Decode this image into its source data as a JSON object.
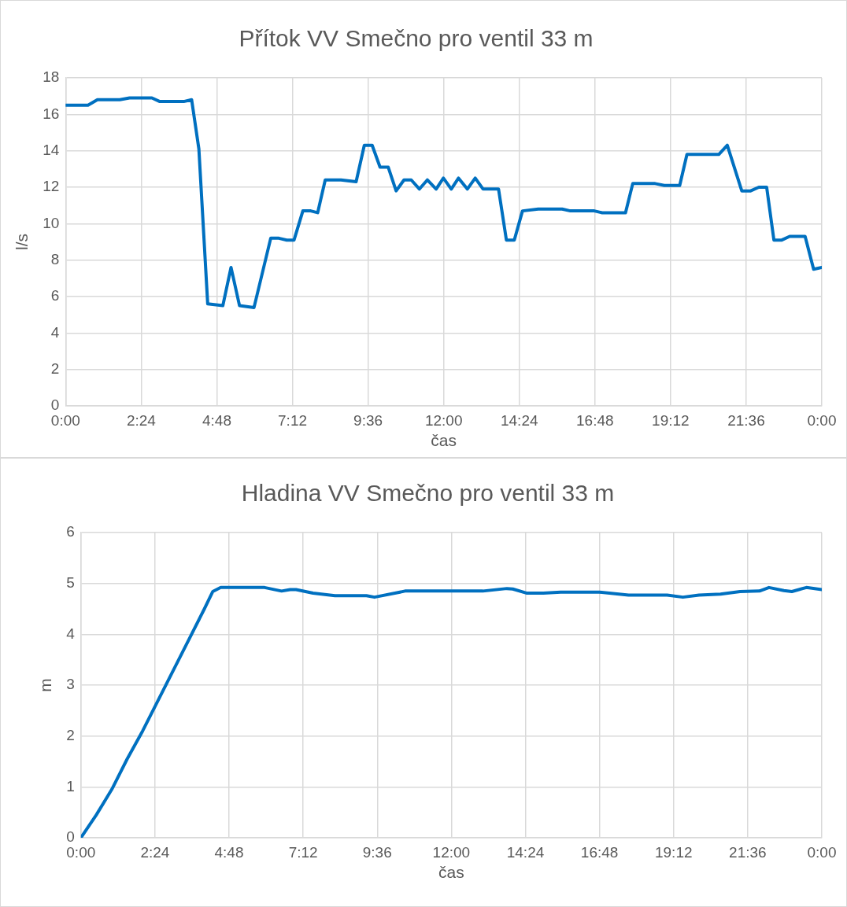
{
  "chart_data": [
    {
      "type": "line",
      "title": "Přítok VV Smečno pro ventil 33 m",
      "xlabel": "čas",
      "ylabel": "l/s",
      "grid": true,
      "marker": "none",
      "line_style": "solid",
      "x": [
        0,
        0.71,
        1.01,
        1.72,
        2.03,
        2.74,
        2.99,
        3.75,
        4.0,
        4.23,
        4.51,
        4.99,
        5.25,
        5.52,
        5.98,
        6.51,
        6.77,
        7.02,
        7.25,
        7.53,
        7.78,
        8.0,
        8.24,
        8.74,
        9.22,
        9.48,
        9.73,
        9.98,
        10.24,
        10.49,
        10.74,
        10.97,
        11.23,
        11.48,
        11.76,
        11.99,
        12.24,
        12.47,
        12.75,
        13.0,
        13.25,
        13.74,
        13.99,
        14.24,
        14.5,
        15.0,
        15.76,
        16.02,
        16.78,
        17.03,
        17.77,
        18.0,
        18.71,
        19.0,
        19.49,
        19.72,
        19.97,
        20.73,
        21.0,
        21.46,
        21.74,
        22.0,
        22.25,
        22.48,
        22.73,
        22.98,
        23.47,
        23.74,
        24.0
      ],
      "series": [
        {
          "color": "#0070c0",
          "values": [
            16.5,
            16.5,
            16.8,
            16.8,
            16.9,
            16.9,
            16.7,
            16.7,
            16.8,
            14.1,
            5.6,
            5.5,
            7.6,
            5.5,
            5.4,
            9.2,
            9.2,
            9.1,
            9.1,
            10.7,
            10.7,
            10.6,
            12.4,
            12.4,
            12.3,
            14.3,
            14.3,
            13.1,
            13.1,
            11.8,
            12.4,
            12.4,
            11.9,
            12.4,
            11.9,
            12.5,
            11.9,
            12.5,
            11.9,
            12.5,
            11.9,
            11.9,
            9.1,
            9.1,
            10.7,
            10.8,
            10.8,
            10.7,
            10.7,
            10.6,
            10.6,
            12.2,
            12.2,
            12.1,
            12.1,
            13.8,
            13.8,
            13.8,
            14.3,
            11.8,
            11.8,
            12.0,
            12.0,
            9.1,
            9.1,
            9.3,
            9.3,
            7.5,
            7.6
          ]
        }
      ],
      "xlim": [
        0,
        24
      ],
      "xticks": [
        {
          "value": 0,
          "label": "0:00"
        },
        {
          "value": 2.4,
          "label": "2:24"
        },
        {
          "value": 4.8,
          "label": "4:48"
        },
        {
          "value": 7.2,
          "label": "7:12"
        },
        {
          "value": 9.6,
          "label": "9:36"
        },
        {
          "value": 12,
          "label": "12:00"
        },
        {
          "value": 14.4,
          "label": "14:24"
        },
        {
          "value": 16.8,
          "label": "16:48"
        },
        {
          "value": 19.2,
          "label": "19:12"
        },
        {
          "value": 21.6,
          "label": "21:36"
        },
        {
          "value": 24,
          "label": "0:00"
        }
      ],
      "ylim": [
        0,
        18
      ],
      "yticks": [
        0,
        2,
        4,
        6,
        8,
        10,
        12,
        14,
        16,
        18
      ]
    },
    {
      "type": "line",
      "title": "Hladina VV Smečno pro ventil 33 m",
      "xlabel": "čas",
      "ylabel": "m",
      "grid": true,
      "marker": "none",
      "line_style": "solid",
      "x": [
        0,
        0.5,
        1,
        1.5,
        2,
        2.5,
        3,
        3.5,
        4,
        4.27,
        4.53,
        5.95,
        6.5,
        6.78,
        6.97,
        7.52,
        8.23,
        9.25,
        9.51,
        10.27,
        10.5,
        13.02,
        13.8,
        13.99,
        14.43,
        14.98,
        15.54,
        16.79,
        17.74,
        18.99,
        19.5,
        20.02,
        20.72,
        21.35,
        21.98,
        22.29,
        22.77,
        23.03,
        23.5,
        24
      ],
      "series": [
        {
          "color": "#0070c0",
          "values": [
            0,
            0.45,
            0.95,
            1.55,
            2.1,
            2.7,
            3.3,
            3.9,
            4.5,
            4.84,
            4.92,
            4.92,
            4.85,
            4.88,
            4.88,
            4.81,
            4.76,
            4.76,
            4.73,
            4.82,
            4.85,
            4.85,
            4.9,
            4.89,
            4.81,
            4.81,
            4.83,
            4.83,
            4.77,
            4.77,
            4.73,
            4.77,
            4.79,
            4.84,
            4.85,
            4.92,
            4.86,
            4.84,
            4.92,
            4.88
          ]
        }
      ],
      "xlim": [
        0,
        24
      ],
      "xticks": [
        {
          "value": 0,
          "label": "0:00"
        },
        {
          "value": 2.4,
          "label": "2:24"
        },
        {
          "value": 4.8,
          "label": "4:48"
        },
        {
          "value": 7.2,
          "label": "7:12"
        },
        {
          "value": 9.6,
          "label": "9:36"
        },
        {
          "value": 12,
          "label": "12:00"
        },
        {
          "value": 14.4,
          "label": "14:24"
        },
        {
          "value": 16.8,
          "label": "16:48"
        },
        {
          "value": 19.2,
          "label": "19:12"
        },
        {
          "value": 21.6,
          "label": "21:36"
        },
        {
          "value": 24,
          "label": "0:00"
        }
      ],
      "ylim": [
        0,
        6
      ],
      "yticks": [
        0,
        1,
        2,
        3,
        4,
        5,
        6
      ]
    }
  ]
}
